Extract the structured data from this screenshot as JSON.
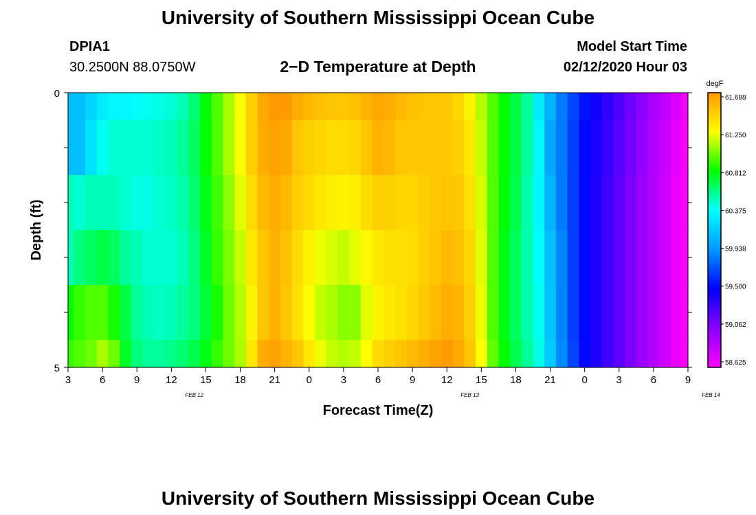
{
  "title": "University of Southern Mississippi Ocean Cube",
  "footer_title": "University of Southern Mississippi Ocean Cube",
  "station": {
    "id": "DPIA1",
    "coords": "30.2500N 88.0750W"
  },
  "subtitle": "2−D Temperature at Depth",
  "model_start": {
    "label": "Model Start Time",
    "value": "02/12/2020 Hour 03"
  },
  "chart_data": {
    "type": "heatmap",
    "title": "2−D Temperature at Depth",
    "xlabel": "Forecast Time(Z)",
    "ylabel": "Depth (ft)",
    "ylim": [
      0,
      5
    ],
    "y_ticks": [
      "0",
      "5"
    ],
    "x_tick_labels": [
      "3",
      "6",
      "9",
      "12",
      "15",
      "18",
      "21",
      "0",
      "3",
      "6",
      "9",
      "12",
      "15",
      "18",
      "21",
      "0",
      "3",
      "6",
      "9"
    ],
    "date_labels": [
      "FEB 12",
      "FEB 13",
      "FEB 14"
    ],
    "colorbar": {
      "unit": "degF",
      "ticks": [
        "61.688",
        "61.250",
        "60.812",
        "60.375",
        "59.938",
        "59.500",
        "59.062",
        "58.625"
      ],
      "min": 58.625,
      "max": 61.688,
      "colors": [
        "#ff00ff",
        "#8800ff",
        "#0000ff",
        "#0099ff",
        "#00ffff",
        "#00ff00",
        "#ffff00",
        "#ff9900"
      ]
    },
    "depth_layers": [
      0.0,
      0.5,
      1.5,
      2.5,
      3.5,
      4.5
    ],
    "columns": [
      {
        "hour": 3,
        "values": [
          60.1,
          60.1,
          60.5,
          60.5,
          60.82,
          60.9
        ]
      },
      {
        "hour": 4,
        "values": [
          60.1,
          60.1,
          60.45,
          60.6,
          60.9,
          60.95
        ]
      },
      {
        "hour": 5,
        "values": [
          60.2,
          60.25,
          60.5,
          60.65,
          60.95,
          61.0
        ]
      },
      {
        "hour": 6,
        "values": [
          60.3,
          60.4,
          60.5,
          60.7,
          60.95,
          61.1
        ]
      },
      {
        "hour": 7,
        "values": [
          60.35,
          60.45,
          60.5,
          60.65,
          60.85,
          61.0
        ]
      },
      {
        "hour": 8,
        "values": [
          60.35,
          60.45,
          60.45,
          60.55,
          60.7,
          60.75
        ]
      },
      {
        "hour": 9,
        "values": [
          60.38,
          60.45,
          60.42,
          60.5,
          60.55,
          60.6
        ]
      },
      {
        "hour": 10,
        "values": [
          60.4,
          60.45,
          60.42,
          60.45,
          60.5,
          60.55
        ]
      },
      {
        "hour": 11,
        "values": [
          60.42,
          60.48,
          60.45,
          60.45,
          60.48,
          60.55
        ]
      },
      {
        "hour": 12,
        "values": [
          60.45,
          60.5,
          60.48,
          60.45,
          60.5,
          60.58
        ]
      },
      {
        "hour": 13,
        "values": [
          60.5,
          60.55,
          60.52,
          60.5,
          60.55,
          60.62
        ]
      },
      {
        "hour": 14,
        "values": [
          60.62,
          60.65,
          60.62,
          60.6,
          60.6,
          60.68
        ]
      },
      {
        "hour": 15,
        "values": [
          60.8,
          60.82,
          60.78,
          60.75,
          60.72,
          60.78
        ]
      },
      {
        "hour": 16,
        "values": [
          60.95,
          60.95,
          60.92,
          60.9,
          60.85,
          60.9
        ]
      },
      {
        "hour": 17,
        "values": [
          61.1,
          61.1,
          61.05,
          61.02,
          61.0,
          61.0
        ]
      },
      {
        "hour": 18,
        "values": [
          61.25,
          61.25,
          61.2,
          61.15,
          61.12,
          61.1
        ]
      },
      {
        "hour": 19,
        "values": [
          61.45,
          61.45,
          61.4,
          61.35,
          61.3,
          61.35
        ]
      },
      {
        "hour": 20,
        "values": [
          61.62,
          61.6,
          61.55,
          61.5,
          61.5,
          61.6
        ]
      },
      {
        "hour": 21,
        "values": [
          61.68,
          61.65,
          61.6,
          61.58,
          61.58,
          61.65
        ]
      },
      {
        "hour": 22,
        "values": [
          61.68,
          61.62,
          61.55,
          61.52,
          61.5,
          61.58
        ]
      },
      {
        "hour": 23,
        "values": [
          61.6,
          61.5,
          61.45,
          61.4,
          61.38,
          61.5
        ]
      },
      {
        "hour": 0,
        "values": [
          61.55,
          61.45,
          61.4,
          61.3,
          61.25,
          61.35
        ]
      },
      {
        "hour": 1,
        "values": [
          61.52,
          61.42,
          61.35,
          61.22,
          61.15,
          61.22
        ]
      },
      {
        "hour": 2,
        "values": [
          61.5,
          61.4,
          61.32,
          61.18,
          61.1,
          61.15
        ]
      },
      {
        "hour": 3,
        "values": [
          61.5,
          61.4,
          61.3,
          61.15,
          61.05,
          61.12
        ]
      },
      {
        "hour": 4,
        "values": [
          61.52,
          61.42,
          61.32,
          61.2,
          61.05,
          61.15
        ]
      },
      {
        "hour": 5,
        "values": [
          61.58,
          61.5,
          61.4,
          61.28,
          61.2,
          61.25
        ]
      },
      {
        "hour": 6,
        "values": [
          61.62,
          61.58,
          61.45,
          61.35,
          61.3,
          61.4
        ]
      },
      {
        "hour": 7,
        "values": [
          61.6,
          61.55,
          61.45,
          61.38,
          61.35,
          61.45
        ]
      },
      {
        "hour": 8,
        "values": [
          61.55,
          61.5,
          61.42,
          61.38,
          61.38,
          61.5
        ]
      },
      {
        "hour": 9,
        "values": [
          61.52,
          61.48,
          61.42,
          61.4,
          61.42,
          61.55
        ]
      },
      {
        "hour": 10,
        "values": [
          61.5,
          61.48,
          61.45,
          61.45,
          61.48,
          61.6
        ]
      },
      {
        "hour": 11,
        "values": [
          61.5,
          61.5,
          61.48,
          61.5,
          61.55,
          61.65
        ]
      },
      {
        "hour": 12,
        "values": [
          61.48,
          61.48,
          61.5,
          61.55,
          61.6,
          61.68
        ]
      },
      {
        "hour": 13,
        "values": [
          61.42,
          61.45,
          61.48,
          61.52,
          61.58,
          61.62
        ]
      },
      {
        "hour": 14,
        "values": [
          61.3,
          61.35,
          61.38,
          61.42,
          61.45,
          61.5
        ]
      },
      {
        "hour": 15,
        "values": [
          61.12,
          61.15,
          61.18,
          61.2,
          61.22,
          61.25
        ]
      },
      {
        "hour": 16,
        "values": [
          60.95,
          60.95,
          60.95,
          60.95,
          60.95,
          60.98
        ]
      },
      {
        "hour": 17,
        "values": [
          60.82,
          60.82,
          60.8,
          60.78,
          60.78,
          60.8
        ]
      },
      {
        "hour": 18,
        "values": [
          60.7,
          60.7,
          60.68,
          60.65,
          60.65,
          60.68
        ]
      },
      {
        "hour": 19,
        "values": [
          60.55,
          60.55,
          60.52,
          60.52,
          60.52,
          60.55
        ]
      },
      {
        "hour": 20,
        "values": [
          60.3,
          60.35,
          60.35,
          60.38,
          60.4,
          60.42
        ]
      },
      {
        "hour": 21,
        "values": [
          60.05,
          60.0,
          60.05,
          60.1,
          60.12,
          60.15
        ]
      },
      {
        "hour": 22,
        "values": [
          59.85,
          59.85,
          59.85,
          59.88,
          59.88,
          59.9
        ]
      },
      {
        "hour": 23,
        "values": [
          59.7,
          59.68,
          59.68,
          59.68,
          59.68,
          59.7
        ]
      },
      {
        "hour": 0,
        "values": [
          59.55,
          59.52,
          59.52,
          59.52,
          59.52,
          59.52
        ]
      },
      {
        "hour": 1,
        "values": [
          59.45,
          59.42,
          59.4,
          59.4,
          59.4,
          59.4
        ]
      },
      {
        "hour": 2,
        "values": [
          59.35,
          59.32,
          59.3,
          59.3,
          59.3,
          59.3
        ]
      },
      {
        "hour": 3,
        "values": [
          59.25,
          59.22,
          59.2,
          59.2,
          59.2,
          59.2
        ]
      },
      {
        "hour": 4,
        "values": [
          59.15,
          59.12,
          59.1,
          59.1,
          59.1,
          59.1
        ]
      },
      {
        "hour": 5,
        "values": [
          59.05,
          59.02,
          59.0,
          59.0,
          59.0,
          59.0
        ]
      },
      {
        "hour": 6,
        "values": [
          58.95,
          58.92,
          58.9,
          58.9,
          58.9,
          58.9
        ]
      },
      {
        "hour": 7,
        "values": [
          58.85,
          58.82,
          58.8,
          58.8,
          58.8,
          58.8
        ]
      },
      {
        "hour": 8,
        "values": [
          58.75,
          58.72,
          58.7,
          58.7,
          58.7,
          58.7
        ]
      },
      {
        "hour": 9,
        "values": [
          58.65,
          58.63,
          58.63,
          58.63,
          58.63,
          58.63
        ]
      }
    ]
  }
}
